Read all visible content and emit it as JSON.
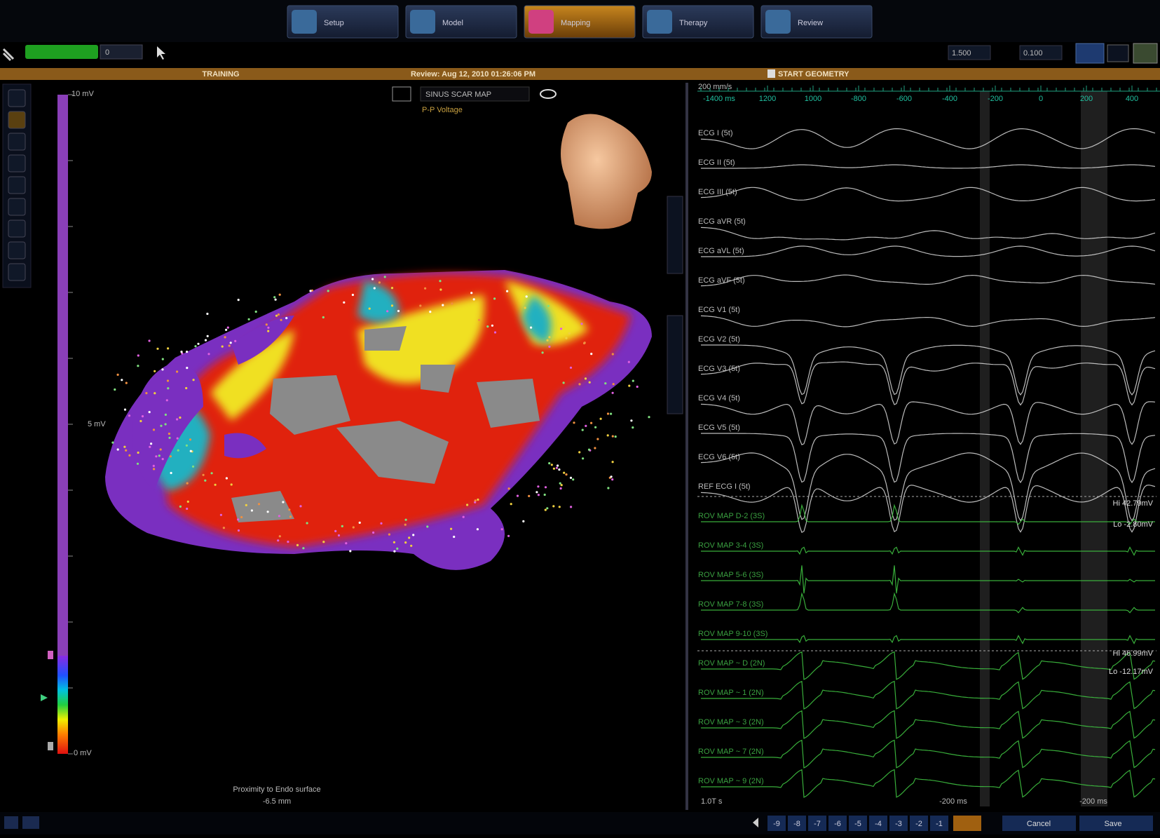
{
  "nav_tabs": [
    "Setup",
    "Model",
    "Mapping",
    "Therapy",
    "Review"
  ],
  "toolbar": {
    "gain_1": "1.500",
    "gain_2": "0.100",
    "field": "0"
  },
  "status_bar": {
    "left": "TRAINING",
    "center": "Review: Aug 12, 2010 01:26:06 PM",
    "right": "START GEOMETRY"
  },
  "map_panel": {
    "map_name": "SINUS SCAR MAP",
    "map_type": "P-P Voltage",
    "scale_max": "10 mV",
    "scale_mid": "5 mV",
    "scale_min": "0 mV",
    "proximity_label": "Proximity to Endo surface",
    "proximity_value": "-6.5 mm"
  },
  "ecg_panel": {
    "sweep_speed": "200 mm/s",
    "window_start": "-1400 ms",
    "time_ticks": [
      "1200",
      "1000",
      "-800",
      "-600",
      "-400",
      "-200",
      "0",
      "200",
      "400"
    ],
    "channels": [
      "ECG I (5t)",
      "ECG II (5t)",
      "ECG III (5t)",
      "ECG aVR (5t)",
      "ECG aVL (5t)",
      "ECG aVF (5t)",
      "ECG V1 (5t)",
      "ECG V2 (5t)",
      "ECG V3 (5t)",
      "ECG V4 (5t)",
      "ECG V5 (5t)",
      "ECG V6 (5t)",
      "REF ECG I (5t)",
      "ROV MAP D-2 (3S)",
      "ROV MAP 3-4 (3S)",
      "ROV MAP 5-6 (3S)",
      "ROV MAP 7-8 (3S)",
      "ROV MAP 9-10 (3S)",
      "ROV MAP ~ D (2N)",
      "ROV MAP ~ 1 (2N)",
      "ROV MAP ~ 3 (2N)",
      "ROV MAP ~ 7 (2N)",
      "ROV MAP ~ 9 (2N)"
    ],
    "annotations": [
      "Hi 42.79mV",
      "Lo -2.80mV",
      "Hi 46.99mV",
      "Lo -12.17mV"
    ],
    "markers": [
      "-200 ms",
      "-200 ms"
    ],
    "time_scale": "1.0T s"
  },
  "footer": {
    "steps": [
      "-9",
      "-8",
      "-7",
      "-6",
      "-5",
      "-4",
      "-3",
      "-2",
      "-1"
    ],
    "cancel": "Cancel",
    "save": "Save"
  }
}
